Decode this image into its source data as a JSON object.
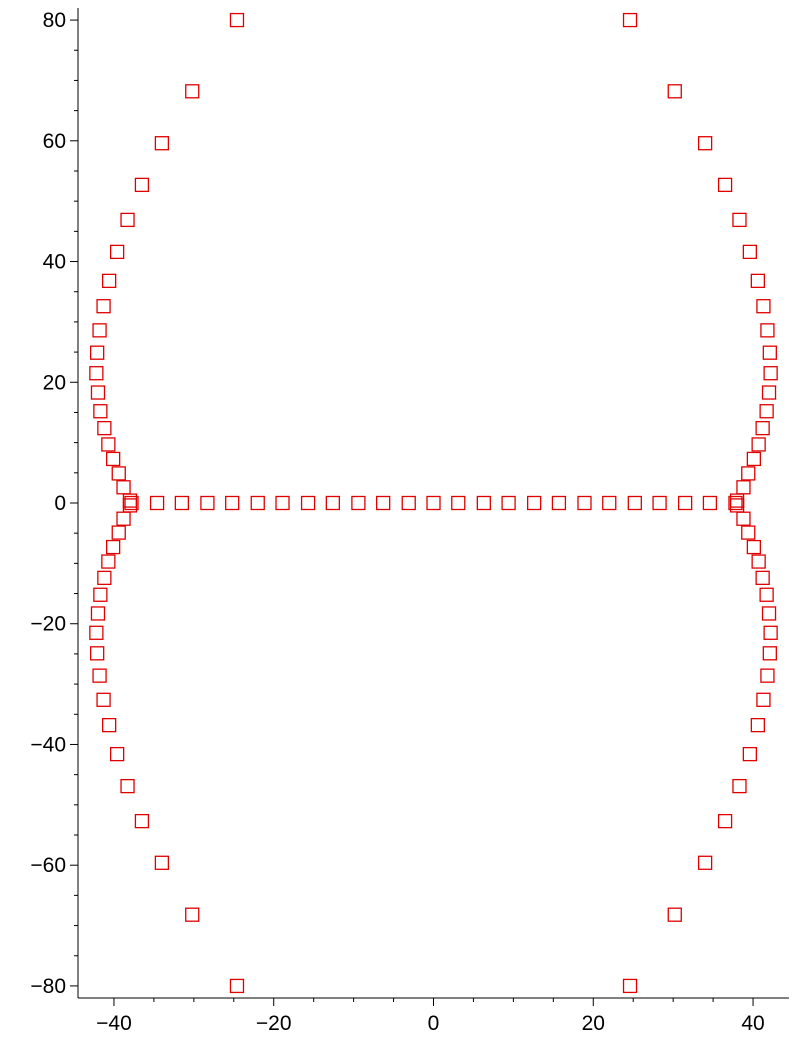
{
  "chart_data": {
    "type": "scatter",
    "title": "",
    "xlabel": "",
    "ylabel": "",
    "xlim": [
      -44.5,
      44.5
    ],
    "ylim": [
      -82,
      82
    ],
    "grid": false,
    "legend": "none",
    "marker": "square",
    "marker_color": "#e00000",
    "x_ticks": [
      -40,
      -20,
      0,
      20,
      40
    ],
    "x_tick_labels": [
      "−40",
      "−20",
      "0",
      "20",
      "40"
    ],
    "y_ticks": [
      -80,
      -60,
      -40,
      -20,
      0,
      20,
      40,
      60,
      80
    ],
    "y_tick_labels": [
      "−80",
      "−60",
      "−40",
      "−20",
      "0",
      "20",
      "40",
      "60",
      "80"
    ],
    "series": [
      {
        "points": [
          [
            -24.6,
            80.0
          ],
          [
            -30.2,
            68.2
          ],
          [
            -34.0,
            59.6
          ],
          [
            -36.5,
            52.7
          ],
          [
            -38.3,
            46.9
          ],
          [
            -39.6,
            41.6
          ],
          [
            -40.6,
            36.8
          ],
          [
            -41.3,
            32.6
          ],
          [
            -41.8,
            28.6
          ],
          [
            -42.1,
            24.9
          ],
          [
            -42.2,
            21.5
          ],
          [
            -42.0,
            18.3
          ],
          [
            -41.7,
            15.2
          ],
          [
            -41.2,
            12.4
          ],
          [
            -40.7,
            9.7
          ],
          [
            -40.1,
            7.3
          ],
          [
            -39.4,
            4.9
          ],
          [
            -38.8,
            2.6
          ],
          [
            -38.0,
            0.4
          ],
          [
            -24.6,
            -80.0
          ],
          [
            -30.2,
            -68.2
          ],
          [
            -34.0,
            -59.6
          ],
          [
            -36.5,
            -52.7
          ],
          [
            -38.3,
            -46.9
          ],
          [
            -39.6,
            -41.6
          ],
          [
            -40.6,
            -36.8
          ],
          [
            -41.3,
            -32.6
          ],
          [
            -41.8,
            -28.6
          ],
          [
            -42.1,
            -24.9
          ],
          [
            -42.2,
            -21.5
          ],
          [
            -42.0,
            -18.3
          ],
          [
            -41.7,
            -15.2
          ],
          [
            -41.2,
            -12.4
          ],
          [
            -40.7,
            -9.7
          ],
          [
            -40.1,
            -7.3
          ],
          [
            -39.4,
            -4.9
          ],
          [
            -38.8,
            -2.6
          ],
          [
            -38.0,
            -0.4
          ],
          [
            24.6,
            80.0
          ],
          [
            30.2,
            68.2
          ],
          [
            34.0,
            59.6
          ],
          [
            36.5,
            52.7
          ],
          [
            38.3,
            46.9
          ],
          [
            39.6,
            41.6
          ],
          [
            40.6,
            36.8
          ],
          [
            41.3,
            32.6
          ],
          [
            41.8,
            28.6
          ],
          [
            42.1,
            24.9
          ],
          [
            42.2,
            21.5
          ],
          [
            42.0,
            18.3
          ],
          [
            41.7,
            15.2
          ],
          [
            41.2,
            12.4
          ],
          [
            40.7,
            9.7
          ],
          [
            40.1,
            7.3
          ],
          [
            39.4,
            4.9
          ],
          [
            38.8,
            2.6
          ],
          [
            38.0,
            0.4
          ],
          [
            24.6,
            -80.0
          ],
          [
            30.2,
            -68.2
          ],
          [
            34.0,
            -59.6
          ],
          [
            36.5,
            -52.7
          ],
          [
            38.3,
            -46.9
          ],
          [
            39.6,
            -41.6
          ],
          [
            40.6,
            -36.8
          ],
          [
            41.3,
            -32.6
          ],
          [
            41.8,
            -28.6
          ],
          [
            42.1,
            -24.9
          ],
          [
            42.2,
            -21.5
          ],
          [
            42.0,
            -18.3
          ],
          [
            41.7,
            -15.2
          ],
          [
            41.2,
            -12.4
          ],
          [
            40.7,
            -9.7
          ],
          [
            40.1,
            -7.3
          ],
          [
            39.4,
            -4.9
          ],
          [
            38.8,
            -2.6
          ],
          [
            38.0,
            -0.4
          ],
          [
            -37.8,
            0
          ],
          [
            -34.6,
            0
          ],
          [
            -31.5,
            0
          ],
          [
            -28.3,
            0
          ],
          [
            -25.2,
            0
          ],
          [
            -22.0,
            0
          ],
          [
            -18.9,
            0
          ],
          [
            -15.7,
            0
          ],
          [
            -12.6,
            0
          ],
          [
            -9.4,
            0
          ],
          [
            -6.3,
            0
          ],
          [
            -3.1,
            0
          ],
          [
            0,
            0
          ],
          [
            3.1,
            0
          ],
          [
            6.3,
            0
          ],
          [
            9.4,
            0
          ],
          [
            12.6,
            0
          ],
          [
            15.7,
            0
          ],
          [
            18.9,
            0
          ],
          [
            22.0,
            0
          ],
          [
            25.2,
            0
          ],
          [
            28.3,
            0
          ],
          [
            31.5,
            0
          ],
          [
            34.6,
            0
          ],
          [
            37.8,
            0
          ]
        ]
      }
    ]
  }
}
